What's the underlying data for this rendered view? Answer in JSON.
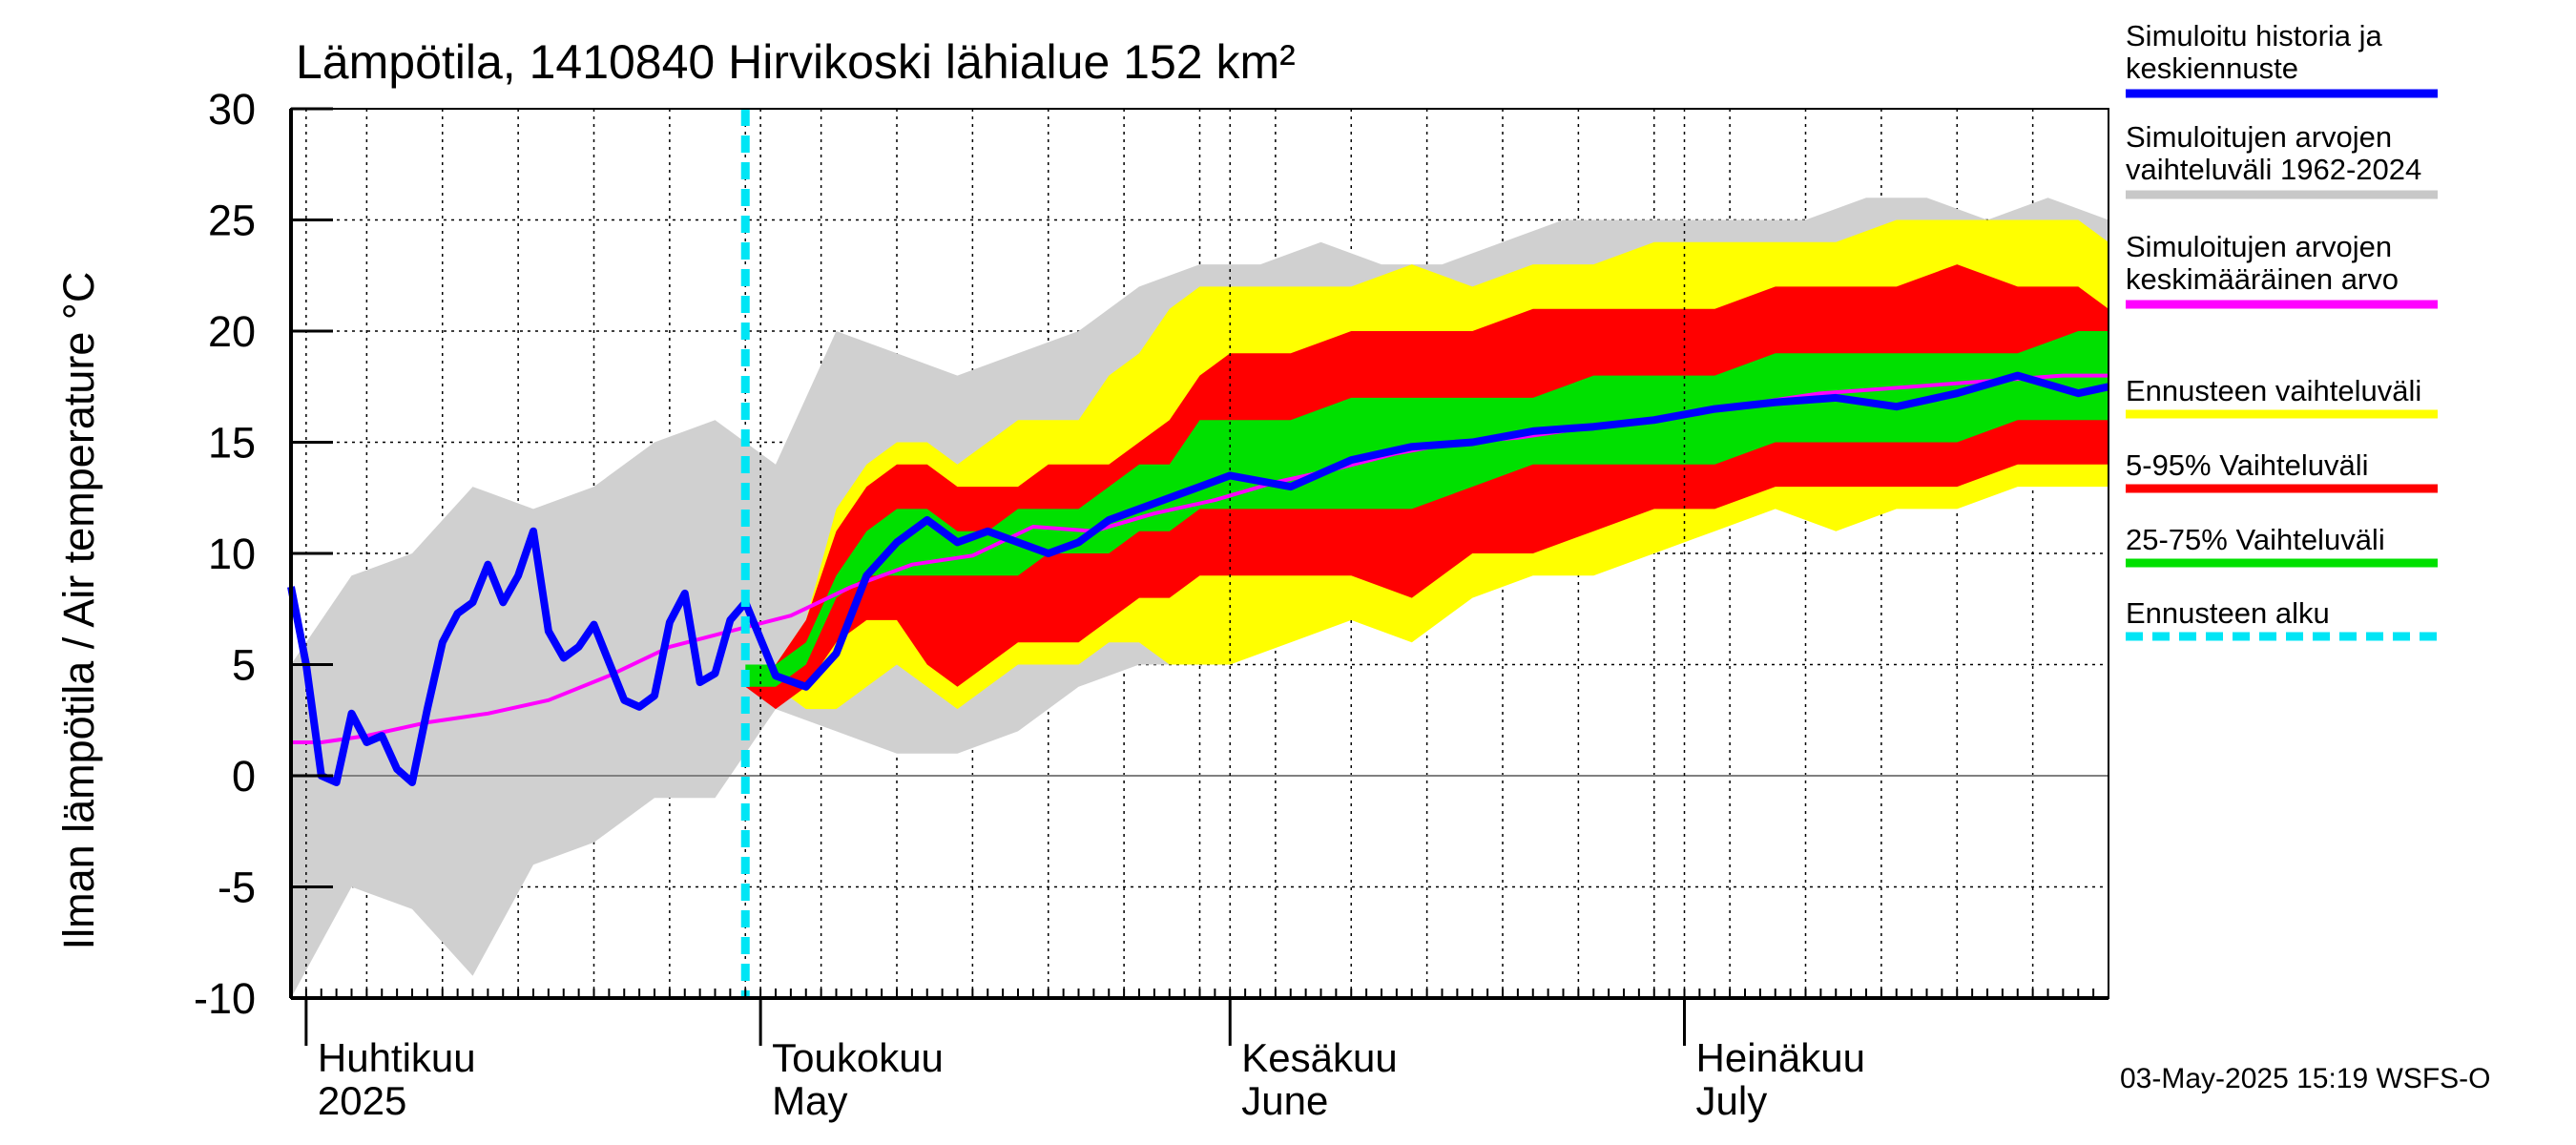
{
  "chart_data": {
    "type": "area",
    "title": "Lämpötila, 1410840 Hirvikoski lähialue 152 km²",
    "ylabel": "Ilman lämpötila / Air temperature   °C",
    "ylim": [
      -10,
      30
    ],
    "yticks": [
      "30",
      "25",
      "20",
      "15",
      "10",
      "5",
      "0",
      "-5",
      "-10"
    ],
    "ytick_values": [
      30,
      25,
      20,
      15,
      10,
      5,
      0,
      -5,
      -10
    ],
    "xlim_days": [
      0,
      120
    ],
    "x_start_date": "2025-03-31",
    "x_end_date": "2025-07-29",
    "grid": true,
    "legend_placement": "right",
    "forecast_start_date": "2025-04-30",
    "months": [
      {
        "fi": "Huhtikuu",
        "en": "2025",
        "date": "2025-04-01"
      },
      {
        "fi": "Toukokuu",
        "en": "May",
        "date": "2025-05-01"
      },
      {
        "fi": "Kesäkuu",
        "en": "June",
        "date": "2025-06-01"
      },
      {
        "fi": "Heinäkuu",
        "en": "July",
        "date": "2025-07-01"
      }
    ],
    "colors": {
      "history_range": "#d0d0d0",
      "forecast_range": "#ffff00",
      "p5_95": "#ff0000",
      "p25_75": "#00e000",
      "simulated": "#0000ff",
      "mean": "#ff00ff",
      "forecast_start": "#00e5f5",
      "zero_line": "#808080"
    },
    "legend": [
      {
        "label_1": "Simuloitu historia ja",
        "label_2": "keskiennuste",
        "color": "#0000ff",
        "style": "solid"
      },
      {
        "label_1": "Simuloitujen arvojen",
        "label_2": "vaihteluväli 1962-2024",
        "color": "#c8c8c8",
        "style": "solid"
      },
      {
        "label_1": "Simuloitujen arvojen",
        "label_2": "keskimääräinen arvo",
        "color": "#ff00ff",
        "style": "solid"
      },
      {
        "label_1": "Ennusteen vaihteluväli",
        "label_2": "",
        "color": "#ffff00",
        "style": "solid"
      },
      {
        "label_1": "5-95% Vaihteluväli",
        "label_2": "",
        "color": "#ff0000",
        "style": "solid"
      },
      {
        "label_1": "25-75% Vaihteluväli",
        "label_2": "",
        "color": "#00e000",
        "style": "solid"
      },
      {
        "label_1": "Ennusteen alku",
        "label_2": "",
        "color": "#00e5f5",
        "style": "dashed"
      }
    ],
    "timestamp": "03-May-2025 15:19 WSFS-O",
    "series": [
      {
        "key": "history_range",
        "x": [
          "2025-03-31",
          "2025-04-04",
          "2025-04-08",
          "2025-04-12",
          "2025-04-16",
          "2025-04-20",
          "2025-04-24",
          "2025-04-28",
          "2025-05-02",
          "2025-05-06",
          "2025-05-10",
          "2025-05-14",
          "2025-05-18",
          "2025-05-22",
          "2025-05-26",
          "2025-05-30",
          "2025-06-03",
          "2025-06-07",
          "2025-06-11",
          "2025-06-15",
          "2025-06-19",
          "2025-06-23",
          "2025-06-27",
          "2025-07-01",
          "2025-07-05",
          "2025-07-09",
          "2025-07-13",
          "2025-07-17",
          "2025-07-21",
          "2025-07-25",
          "2025-07-29"
        ],
        "low": [
          -10,
          -5,
          -6,
          -9,
          -4,
          -3,
          -1,
          -1,
          3,
          2,
          1,
          1,
          2,
          4,
          5,
          5,
          6,
          7,
          8,
          9,
          10,
          10,
          11,
          11,
          12,
          12,
          13,
          13,
          13,
          14,
          13
        ],
        "high": [
          5,
          9,
          10,
          13,
          12,
          13,
          15,
          16,
          14,
          20,
          19,
          18,
          19,
          20,
          22,
          23,
          23,
          24,
          23,
          23,
          24,
          25,
          25,
          25,
          25,
          25,
          26,
          26,
          25,
          26,
          25
        ]
      },
      {
        "key": "forecast_range",
        "x": [
          "2025-04-30",
          "2025-05-02",
          "2025-05-04",
          "2025-05-06",
          "2025-05-08",
          "2025-05-10",
          "2025-05-12",
          "2025-05-14",
          "2025-05-16",
          "2025-05-18",
          "2025-05-20",
          "2025-05-22",
          "2025-05-24",
          "2025-05-26",
          "2025-05-28",
          "2025-05-30",
          "2025-06-01",
          "2025-06-05",
          "2025-06-09",
          "2025-06-13",
          "2025-06-17",
          "2025-06-21",
          "2025-06-25",
          "2025-06-29",
          "2025-07-03",
          "2025-07-07",
          "2025-07-11",
          "2025-07-15",
          "2025-07-19",
          "2025-07-23",
          "2025-07-27",
          "2025-07-29"
        ],
        "low": [
          4,
          4,
          3,
          3,
          4,
          5,
          4,
          3,
          4,
          5,
          5,
          5,
          6,
          6,
          5,
          5,
          5,
          6,
          7,
          6,
          8,
          9,
          9,
          10,
          11,
          12,
          11,
          12,
          12,
          13,
          13,
          13
        ],
        "high": [
          4,
          5,
          7,
          12,
          14,
          15,
          15,
          14,
          15,
          16,
          16,
          16,
          18,
          19,
          21,
          22,
          22,
          22,
          22,
          23,
          22,
          23,
          23,
          24,
          24,
          24,
          24,
          25,
          25,
          25,
          25,
          24
        ]
      },
      {
        "key": "p5_95",
        "x": [
          "2025-04-30",
          "2025-05-02",
          "2025-05-04",
          "2025-05-06",
          "2025-05-08",
          "2025-05-10",
          "2025-05-12",
          "2025-05-14",
          "2025-05-16",
          "2025-05-18",
          "2025-05-20",
          "2025-05-22",
          "2025-05-24",
          "2025-05-26",
          "2025-05-28",
          "2025-05-30",
          "2025-06-01",
          "2025-06-05",
          "2025-06-09",
          "2025-06-13",
          "2025-06-17",
          "2025-06-21",
          "2025-06-25",
          "2025-06-29",
          "2025-07-03",
          "2025-07-07",
          "2025-07-11",
          "2025-07-15",
          "2025-07-19",
          "2025-07-23",
          "2025-07-27",
          "2025-07-29"
        ],
        "low": [
          4,
          3,
          4,
          6,
          7,
          7,
          5,
          4,
          5,
          6,
          6,
          6,
          7,
          8,
          8,
          9,
          9,
          9,
          9,
          8,
          10,
          10,
          11,
          12,
          12,
          13,
          13,
          13,
          13,
          14,
          14,
          14
        ],
        "high": [
          4,
          5,
          7,
          11,
          13,
          14,
          14,
          13,
          13,
          13,
          14,
          14,
          14,
          15,
          16,
          18,
          19,
          19,
          20,
          20,
          20,
          21,
          21,
          21,
          21,
          22,
          22,
          22,
          23,
          22,
          22,
          21
        ]
      },
      {
        "key": "p25_75",
        "x": [
          "2025-04-30",
          "2025-05-02",
          "2025-05-04",
          "2025-05-06",
          "2025-05-08",
          "2025-05-10",
          "2025-05-12",
          "2025-05-14",
          "2025-05-16",
          "2025-05-18",
          "2025-05-20",
          "2025-05-22",
          "2025-05-24",
          "2025-05-26",
          "2025-05-28",
          "2025-05-30",
          "2025-06-01",
          "2025-06-05",
          "2025-06-09",
          "2025-06-13",
          "2025-06-17",
          "2025-06-21",
          "2025-06-25",
          "2025-06-29",
          "2025-07-03",
          "2025-07-07",
          "2025-07-11",
          "2025-07-15",
          "2025-07-19",
          "2025-07-23",
          "2025-07-27",
          "2025-07-29"
        ],
        "low": [
          4,
          4,
          5,
          8,
          9,
          9,
          9,
          9,
          9,
          9,
          10,
          10,
          10,
          11,
          11,
          12,
          12,
          12,
          12,
          12,
          13,
          14,
          14,
          14,
          14,
          15,
          15,
          15,
          15,
          16,
          16,
          16
        ],
        "high": [
          5,
          5,
          6,
          9,
          11,
          12,
          12,
          11,
          11,
          12,
          12,
          12,
          13,
          14,
          14,
          16,
          16,
          16,
          17,
          17,
          17,
          17,
          18,
          18,
          18,
          19,
          19,
          19,
          19,
          19,
          20,
          20
        ]
      },
      {
        "key": "mean",
        "x": [
          "2025-03-31",
          "2025-04-02",
          "2025-04-05",
          "2025-04-09",
          "2025-04-13",
          "2025-04-17",
          "2025-04-21",
          "2025-04-25",
          "2025-04-29",
          "2025-05-03",
          "2025-05-07",
          "2025-05-11",
          "2025-05-15",
          "2025-05-19",
          "2025-05-23",
          "2025-05-27",
          "2025-05-31",
          "2025-06-04",
          "2025-06-08",
          "2025-06-12",
          "2025-06-16",
          "2025-06-20",
          "2025-06-24",
          "2025-06-28",
          "2025-07-02",
          "2025-07-06",
          "2025-07-10",
          "2025-07-14",
          "2025-07-18",
          "2025-07-22",
          "2025-07-26",
          "2025-07-29"
        ],
        "y": [
          1.5,
          1.5,
          1.8,
          2.4,
          2.8,
          3.4,
          4.5,
          5.8,
          6.5,
          7.2,
          8.5,
          9.5,
          9.9,
          11.2,
          11.0,
          11.8,
          12.4,
          13.2,
          13.8,
          14.5,
          15.0,
          15.2,
          15.6,
          15.9,
          16.4,
          16.8,
          17.2,
          17.4,
          17.6,
          17.8,
          18.0,
          18.0
        ]
      },
      {
        "key": "simulated",
        "x": [
          "2025-03-31",
          "2025-04-01",
          "2025-04-02",
          "2025-04-03",
          "2025-04-04",
          "2025-04-05",
          "2025-04-06",
          "2025-04-07",
          "2025-04-08",
          "2025-04-09",
          "2025-04-10",
          "2025-04-11",
          "2025-04-12",
          "2025-04-13",
          "2025-04-14",
          "2025-04-15",
          "2025-04-16",
          "2025-04-17",
          "2025-04-18",
          "2025-04-19",
          "2025-04-20",
          "2025-04-21",
          "2025-04-22",
          "2025-04-23",
          "2025-04-24",
          "2025-04-25",
          "2025-04-26",
          "2025-04-27",
          "2025-04-28",
          "2025-04-29",
          "2025-04-30",
          "2025-05-02",
          "2025-05-04",
          "2025-05-06",
          "2025-05-08",
          "2025-05-10",
          "2025-05-12",
          "2025-05-14",
          "2025-05-16",
          "2025-05-18",
          "2025-05-20",
          "2025-05-22",
          "2025-05-24",
          "2025-05-26",
          "2025-05-28",
          "2025-05-30",
          "2025-06-01",
          "2025-06-05",
          "2025-06-09",
          "2025-06-13",
          "2025-06-17",
          "2025-06-21",
          "2025-06-25",
          "2025-06-29",
          "2025-07-03",
          "2025-07-07",
          "2025-07-11",
          "2025-07-15",
          "2025-07-19",
          "2025-07-23",
          "2025-07-27",
          "2025-07-29"
        ],
        "y": [
          8.5,
          5,
          0,
          -0.3,
          2.8,
          1.5,
          1.8,
          0.3,
          -0.3,
          3,
          6,
          7.3,
          7.8,
          9.5,
          7.8,
          9,
          11,
          6.5,
          5.3,
          5.8,
          6.8,
          5.1,
          3.4,
          3.1,
          3.6,
          6.9,
          8.2,
          4.2,
          4.6,
          7.0,
          7.8,
          4.5,
          4.0,
          5.5,
          9.0,
          10.5,
          11.5,
          10.5,
          11.0,
          10.5,
          10.0,
          10.5,
          11.5,
          12.0,
          12.5,
          13.0,
          13.5,
          13.0,
          14.2,
          14.8,
          15.0,
          15.5,
          15.7,
          16.0,
          16.5,
          16.8,
          17.0,
          16.6,
          17.2,
          18.0,
          17.2,
          17.5
        ]
      }
    ]
  }
}
